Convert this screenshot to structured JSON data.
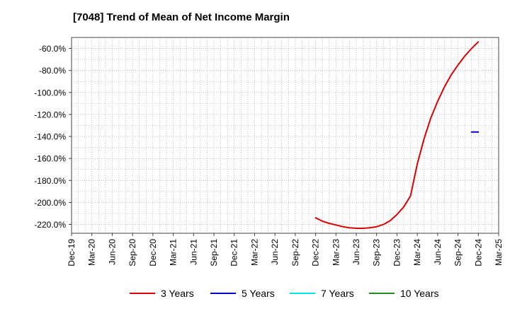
{
  "title": "[7048]  Trend of Mean of Net Income Margin",
  "chart_data": {
    "type": "line",
    "title": "[7048]  Trend of Mean of Net Income Margin",
    "xlabel": "",
    "ylabel": "",
    "x_ticks": [
      "Dec-19",
      "Mar-20",
      "Jun-20",
      "Sep-20",
      "Dec-20",
      "Mar-21",
      "Jun-21",
      "Sep-21",
      "Dec-21",
      "Mar-22",
      "Jun-22",
      "Sep-22",
      "Dec-22",
      "Mar-23",
      "Jun-23",
      "Sep-23",
      "Dec-23",
      "Mar-24",
      "Jun-24",
      "Sep-24",
      "Dec-24",
      "Mar-25"
    ],
    "y_ticks": [
      "-60.0%",
      "-80.0%",
      "-100.0%",
      "-120.0%",
      "-140.0%",
      "-160.0%",
      "-180.0%",
      "-200.0%",
      "-220.0%"
    ],
    "ylim": [
      -228,
      -50
    ],
    "y_tick_values": [
      -60,
      -80,
      -100,
      -120,
      -140,
      -160,
      -180,
      -200,
      -220
    ],
    "grid": true,
    "legend_position": "bottom",
    "series": [
      {
        "name": "3 Years",
        "color": "#dd0000",
        "points": [
          [
            "Dec-22",
            -214
          ],
          [
            "Jan-23",
            -217
          ],
          [
            "Feb-23",
            -219
          ],
          [
            "Mar-23",
            -220.5
          ],
          [
            "Apr-23",
            -222
          ],
          [
            "May-23",
            -223
          ],
          [
            "Jun-23",
            -223.5
          ],
          [
            "Jul-23",
            -223.5
          ],
          [
            "Aug-23",
            -223
          ],
          [
            "Sep-23",
            -222
          ],
          [
            "Oct-23",
            -220
          ],
          [
            "Nov-23",
            -216.5
          ],
          [
            "Dec-23",
            -211
          ],
          [
            "Jan-24",
            -204
          ],
          [
            "Feb-24",
            -194
          ],
          [
            "Mar-24",
            -165
          ],
          [
            "Apr-24",
            -142
          ],
          [
            "May-24",
            -123
          ],
          [
            "Jun-24",
            -108
          ],
          [
            "Jul-24",
            -95
          ],
          [
            "Aug-24",
            -84
          ],
          [
            "Sep-24",
            -75
          ],
          [
            "Oct-24",
            -67
          ],
          [
            "Nov-24",
            -60
          ],
          [
            "Dec-24",
            -54
          ]
        ]
      },
      {
        "name": "5 Years",
        "color": "#0000cc",
        "points": [
          [
            "Nov-24",
            -136
          ],
          [
            "Dec-24",
            -136
          ]
        ]
      },
      {
        "name": "7 Years",
        "color": "#00e5ee",
        "points": []
      },
      {
        "name": "10 Years",
        "color": "#228b22",
        "points": []
      }
    ]
  }
}
